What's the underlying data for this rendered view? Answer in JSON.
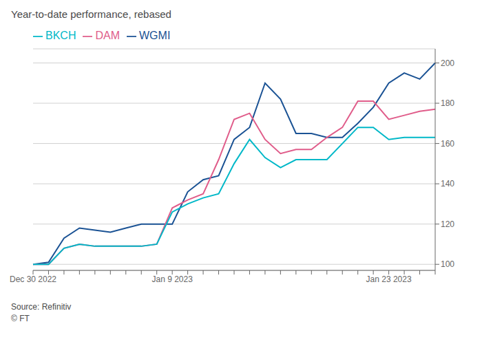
{
  "chart_data": {
    "type": "line",
    "title": "Year-to-date performance, rebased",
    "annotations": [
      "Source: Refinitiv",
      "© FT"
    ],
    "categories": [
      "Dec 30 2022",
      null,
      null,
      null,
      null,
      null,
      null,
      null,
      null,
      "Jan 9 2023",
      null,
      null,
      null,
      null,
      null,
      null,
      null,
      null,
      null,
      null,
      null,
      null,
      null,
      "Jan 23 2023",
      null,
      null,
      null
    ],
    "series": [
      {
        "name": "WGMI",
        "color": "#1a5294",
        "values": [
          100,
          101,
          113,
          118,
          117,
          116,
          118,
          120,
          120,
          120,
          136,
          142,
          144,
          162,
          168,
          190,
          182,
          165,
          165,
          163,
          163,
          170,
          178,
          190,
          195,
          192,
          200
        ]
      },
      {
        "name": "DAM",
        "color": "#e05c8a",
        "values": [
          100,
          100,
          108,
          110,
          109,
          109,
          109,
          109,
          110,
          128,
          132,
          135,
          152,
          172,
          175,
          162,
          155,
          157,
          157,
          163,
          168,
          181,
          181,
          172,
          174,
          176,
          177
        ]
      },
      {
        "name": "BKCH",
        "color": "#00b8c8",
        "values": [
          100,
          100,
          108,
          110,
          109,
          109,
          109,
          109,
          110,
          126,
          130,
          133,
          135,
          150,
          162,
          153,
          148,
          152,
          152,
          152,
          160,
          168,
          168,
          162,
          163,
          163,
          163
        ]
      }
    ],
    "ylim": [
      97,
      207
    ],
    "yticks": [
      100,
      120,
      140,
      160,
      180,
      200
    ],
    "grid": true,
    "legend": "top-left"
  }
}
